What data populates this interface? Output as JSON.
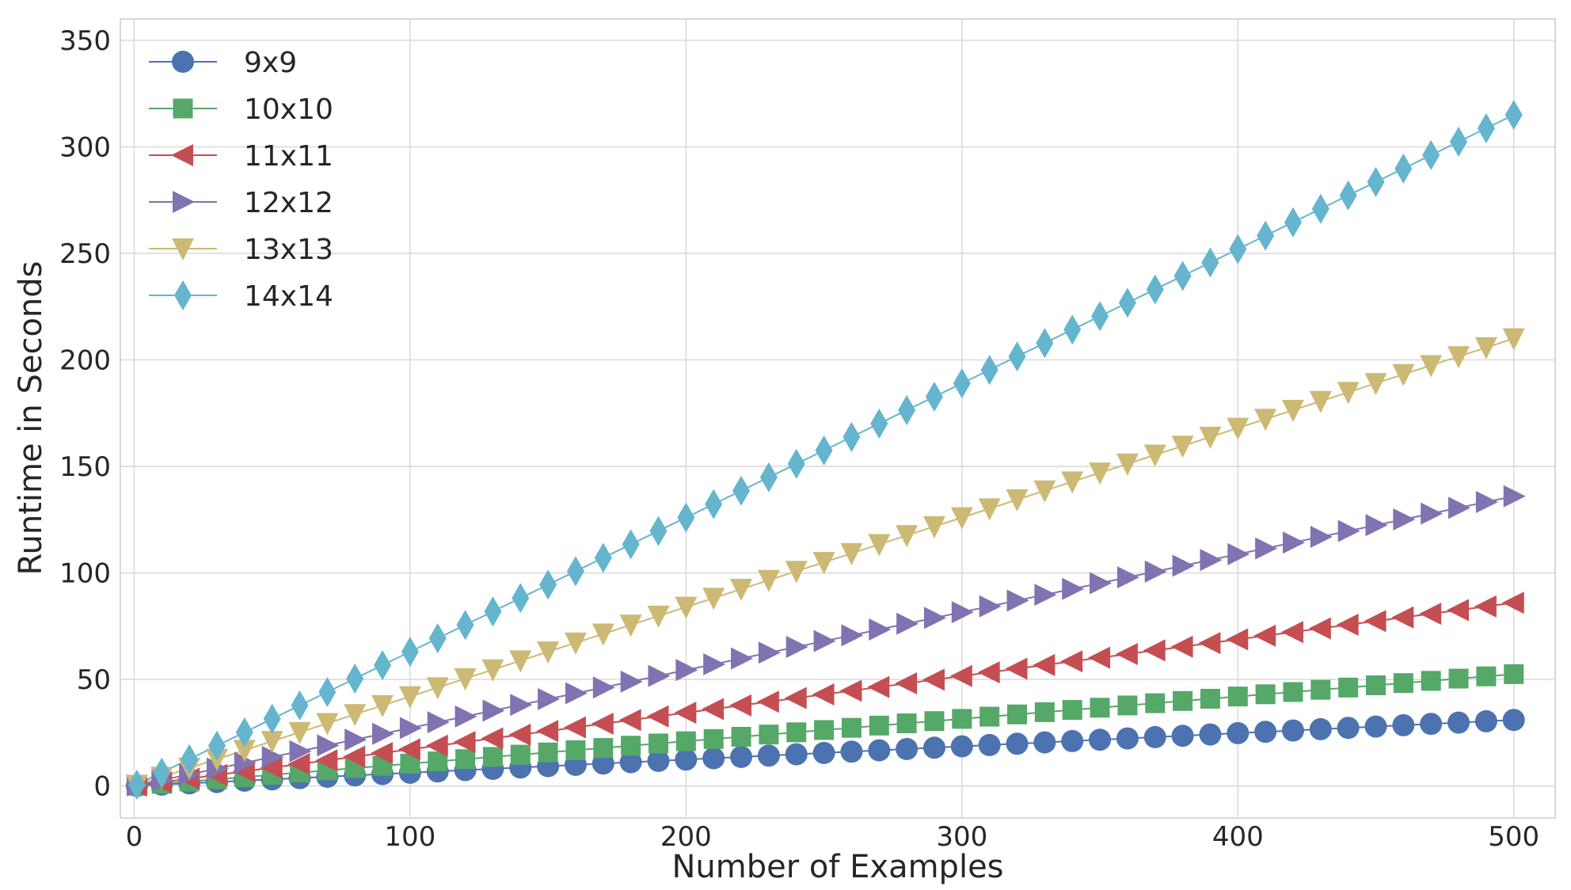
{
  "chart_data": {
    "type": "line",
    "xlabel": "Number of Examples",
    "ylabel": "Runtime in Seconds",
    "xlim": [
      -5,
      515
    ],
    "ylim": [
      -15,
      360
    ],
    "xticks": [
      0,
      100,
      200,
      300,
      400,
      500
    ],
    "yticks": [
      0,
      50,
      100,
      150,
      200,
      250,
      300,
      350
    ],
    "grid": true,
    "legend_position": "top-left",
    "x": [
      1,
      10,
      20,
      30,
      40,
      50,
      60,
      70,
      80,
      90,
      100,
      110,
      120,
      130,
      140,
      150,
      160,
      170,
      180,
      190,
      200,
      210,
      220,
      230,
      240,
      250,
      260,
      270,
      280,
      290,
      300,
      310,
      320,
      330,
      340,
      350,
      360,
      370,
      380,
      390,
      400,
      410,
      420,
      430,
      440,
      450,
      460,
      470,
      480,
      490,
      500
    ],
    "series": [
      {
        "name": "9x9",
        "color": "#4C72B0",
        "marker": "circle",
        "values": [
          0.06,
          0.62,
          1.24,
          1.86,
          2.48,
          3.1,
          3.72,
          4.34,
          4.96,
          5.58,
          6.2,
          6.82,
          7.44,
          8.06,
          8.68,
          9.3,
          9.92,
          10.54,
          11.16,
          11.78,
          12.4,
          13.02,
          13.64,
          14.26,
          14.88,
          15.5,
          16.12,
          16.74,
          17.36,
          17.98,
          18.6,
          19.22,
          19.84,
          20.46,
          21.08,
          21.7,
          22.32,
          22.94,
          23.56,
          24.18,
          24.8,
          25.42,
          26.04,
          26.66,
          27.28,
          27.9,
          28.52,
          29.14,
          29.76,
          30.38,
          31.0
        ]
      },
      {
        "name": "10x10",
        "color": "#55A868",
        "marker": "square",
        "values": [
          0.1,
          1.05,
          2.1,
          3.15,
          4.2,
          5.25,
          6.3,
          7.35,
          8.4,
          9.45,
          10.5,
          11.55,
          12.6,
          13.65,
          14.7,
          15.75,
          16.8,
          17.85,
          18.9,
          19.95,
          21.0,
          22.05,
          23.1,
          24.15,
          25.2,
          26.25,
          27.3,
          28.35,
          29.4,
          30.45,
          31.5,
          32.55,
          33.6,
          34.65,
          35.7,
          36.75,
          37.8,
          38.85,
          39.9,
          40.95,
          42.0,
          43.05,
          44.1,
          45.15,
          46.2,
          47.25,
          48.3,
          49.35,
          50.4,
          51.45,
          52.5
        ]
      },
      {
        "name": "11x11",
        "color": "#C44E52",
        "marker": "triangle-left",
        "values": [
          0.17,
          1.72,
          3.44,
          5.16,
          6.88,
          8.6,
          10.32,
          12.04,
          13.76,
          15.48,
          17.2,
          18.92,
          20.64,
          22.36,
          24.08,
          25.8,
          27.52,
          29.24,
          30.96,
          32.68,
          34.4,
          36.12,
          37.84,
          39.56,
          41.28,
          43.0,
          44.72,
          46.44,
          48.16,
          49.88,
          51.6,
          53.32,
          55.04,
          56.76,
          58.48,
          60.2,
          61.92,
          63.64,
          65.36,
          67.08,
          68.8,
          70.52,
          72.24,
          73.96,
          75.68,
          77.4,
          79.12,
          80.84,
          82.56,
          84.28,
          86.0
        ]
      },
      {
        "name": "12x12",
        "color": "#8172B2",
        "marker": "triangle-right",
        "values": [
          0.27,
          2.72,
          5.44,
          8.16,
          10.88,
          13.6,
          16.32,
          19.04,
          21.76,
          24.48,
          27.2,
          29.92,
          32.64,
          35.36,
          38.08,
          40.8,
          43.52,
          46.24,
          48.96,
          51.68,
          54.4,
          57.12,
          59.84,
          62.56,
          65.28,
          68.0,
          70.72,
          73.44,
          76.16,
          78.88,
          81.6,
          84.32,
          87.04,
          89.76,
          92.48,
          95.2,
          97.92,
          100.64,
          103.36,
          106.08,
          108.8,
          111.52,
          114.24,
          116.96,
          119.68,
          122.4,
          125.12,
          127.84,
          130.56,
          133.28,
          136.0
        ]
      },
      {
        "name": "13x13",
        "color": "#CCB974",
        "marker": "triangle-down",
        "values": [
          0.42,
          4.2,
          8.4,
          12.6,
          16.8,
          21.0,
          25.2,
          29.4,
          33.6,
          37.8,
          42.0,
          46.2,
          50.4,
          54.6,
          58.8,
          63.0,
          67.2,
          71.4,
          75.6,
          79.8,
          84.0,
          88.2,
          92.4,
          96.6,
          100.8,
          105.0,
          109.2,
          113.4,
          117.6,
          121.8,
          126.0,
          130.2,
          134.4,
          138.6,
          142.8,
          147.0,
          151.2,
          155.4,
          159.6,
          163.8,
          168.0,
          172.2,
          176.4,
          180.6,
          184.8,
          189.0,
          193.2,
          197.4,
          201.6,
          205.8,
          210.0
        ]
      },
      {
        "name": "14x14",
        "color": "#64B5CD",
        "marker": "diamond",
        "values": [
          0.63,
          6.3,
          12.6,
          18.9,
          25.2,
          31.5,
          37.8,
          44.1,
          50.4,
          56.7,
          63.0,
          69.3,
          75.6,
          81.9,
          88.2,
          94.5,
          100.8,
          107.1,
          113.4,
          119.7,
          126.0,
          132.3,
          138.6,
          144.9,
          151.2,
          157.5,
          163.8,
          170.1,
          176.4,
          182.7,
          189.0,
          195.3,
          201.6,
          207.9,
          214.2,
          220.5,
          226.8,
          233.1,
          239.4,
          245.7,
          252.0,
          258.3,
          264.6,
          270.9,
          277.2,
          283.5,
          289.8,
          296.1,
          302.4,
          308.7,
          315.0
        ]
      }
    ]
  }
}
